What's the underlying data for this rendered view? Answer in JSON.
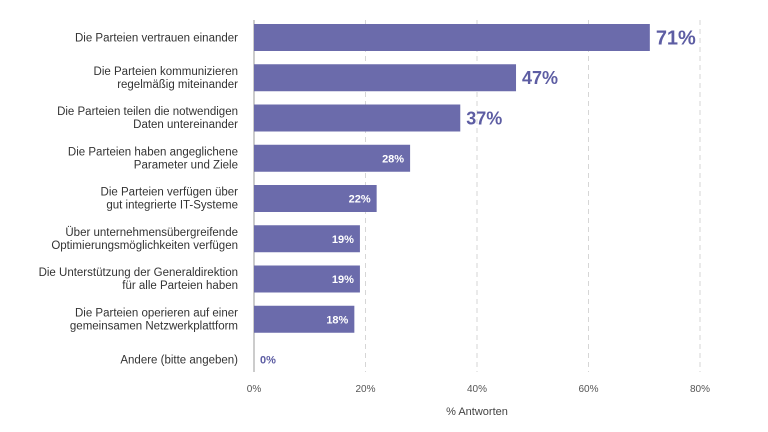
{
  "chart_data": {
    "type": "bar",
    "orientation": "horizontal",
    "categories": [
      [
        "Die Parteien vertrauen einander"
      ],
      [
        "Die Parteien kommunizieren",
        "regelmäßig miteinander"
      ],
      [
        "Die Parteien teilen die notwendigen",
        "Daten untereinander"
      ],
      [
        "Die Parteien haben angeglichene",
        "Parameter und Ziele"
      ],
      [
        "Die Parteien verfügen über",
        "gut integrierte IT-Systeme"
      ],
      [
        "Über unternehmensübergreifende",
        "Optimierungsmöglichkeiten verfügen"
      ],
      [
        "Die Unterstützung der Generaldirektion",
        "für alle Parteien haben"
      ],
      [
        "Die Parteien operieren auf einer",
        "gemeinsamen Netzwerkplattform"
      ],
      [
        "Andere (bitte angeben)"
      ]
    ],
    "values": [
      71,
      47,
      37,
      28,
      22,
      19,
      19,
      18,
      0
    ],
    "value_labels": [
      "71%",
      "47%",
      "37%",
      "28%",
      "22%",
      "19%",
      "19%",
      "18%",
      "0%"
    ],
    "xlabel": "% Antworten",
    "xlim": [
      0,
      80
    ],
    "xticks": [
      0,
      20,
      40,
      60,
      80
    ],
    "xtick_labels": [
      "0%",
      "20%",
      "40%",
      "60%",
      "80%"
    ],
    "grid": true,
    "bar_color": "#6b6bab",
    "label_color": "#5d5da3"
  }
}
